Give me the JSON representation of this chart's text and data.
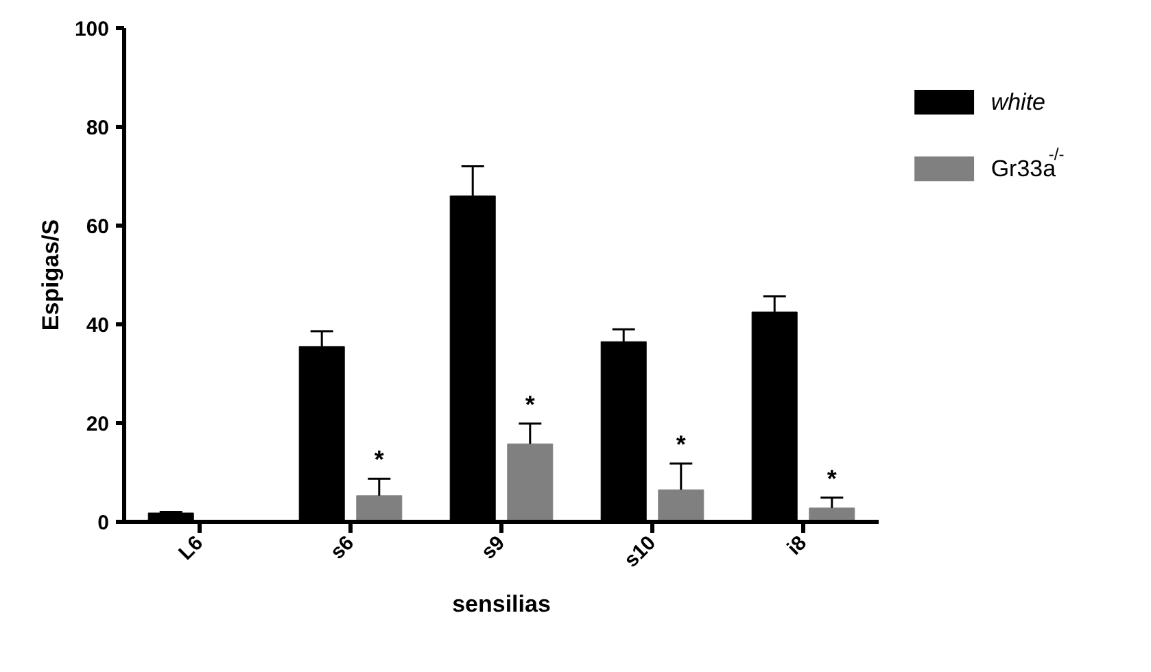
{
  "chart_data": {
    "type": "bar",
    "xlabel": "sensilias",
    "ylabel": "Espigas/S",
    "categories": [
      "L6",
      "s6",
      "s9",
      "s10",
      "i8"
    ],
    "series": [
      {
        "name": "white",
        "color": "#000000",
        "values": [
          1.8,
          35.5,
          66,
          36.5,
          42.5
        ],
        "errors": [
          [
            1.8,
            2.0
          ],
          [
            35.5,
            38.6
          ],
          [
            66,
            72
          ],
          [
            36.5,
            39
          ],
          [
            42.5,
            45.7
          ]
        ]
      },
      {
        "name": "Gr33a$^{-/-}$",
        "color": "#808080",
        "values": [
          null,
          5.3,
          15.8,
          6.5,
          2.8
        ],
        "errors": [
          null,
          [
            5.3,
            8.7
          ],
          [
            15.8,
            19.9
          ],
          [
            6.5,
            11.8
          ],
          [
            2.8,
            4.9
          ]
        ]
      }
    ],
    "ylim": [
      0,
      100
    ],
    "yticks": [
      0,
      20,
      40,
      60,
      80,
      100
    ],
    "grid": false,
    "legend": "right",
    "annotations": [
      {
        "text": "*",
        "x": "s6",
        "y": 8.7
      },
      {
        "text": "*",
        "x": "s9",
        "y": 19.9
      },
      {
        "text": "*",
        "x": "s10",
        "y": 11.8
      },
      {
        "text": "*",
        "x": "i8",
        "y": 4.9
      }
    ]
  }
}
